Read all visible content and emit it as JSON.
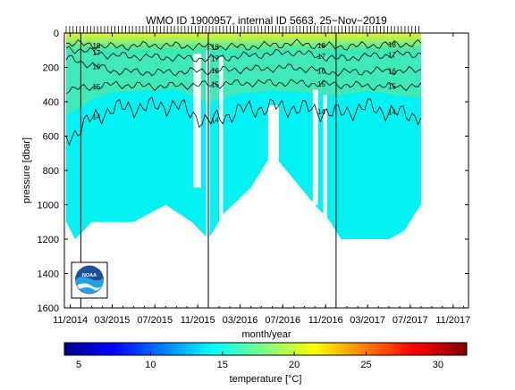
{
  "chart_data": {
    "type": "heatmap",
    "title": "WMO ID 1900957, internal ID 5663, 25−Nov−2019",
    "xlabel": "month/year",
    "ylabel": "pressure [dbar]",
    "x_ticks": [
      "11/2014",
      "03/2015",
      "07/2015",
      "11/2015",
      "03/2016",
      "07/2016",
      "11/2016",
      "03/2017",
      "07/2017",
      "11/2017"
    ],
    "y_ticks": [
      0,
      200,
      400,
      600,
      800,
      1000,
      1200,
      1400,
      1600
    ],
    "ylim": [
      1600,
      0
    ],
    "xlim": [
      "2014-10-15",
      "2017-12-15"
    ],
    "colorbar": {
      "label": "temperature [°C]",
      "range": [
        4,
        32
      ],
      "ticks": [
        5,
        10,
        15,
        20,
        25,
        30
      ],
      "colormap": "jet"
    },
    "contours": [
      {
        "label": "14",
        "level": 14,
        "depth_profile": [
          [
            "2014-11-01",
            600
          ],
          [
            "2015-01-01",
            500
          ],
          [
            "2015-03-01",
            440
          ],
          [
            "2015-06-01",
            430
          ],
          [
            "2015-09-01",
            420
          ],
          [
            "2015-12-01",
            520
          ],
          [
            "2016-03-01",
            450
          ],
          [
            "2016-06-01",
            430
          ],
          [
            "2016-09-01",
            440
          ],
          [
            "2016-12-01",
            470
          ],
          [
            "2017-03-01",
            430
          ],
          [
            "2017-06-01",
            470
          ],
          [
            "2017-08-01",
            480
          ]
        ]
      },
      {
        "label": "15",
        "level": 15,
        "depth_profile": [
          [
            "2014-11-01",
            330
          ],
          [
            "2015-03-01",
            300
          ],
          [
            "2015-07-01",
            310
          ],
          [
            "2015-12-01",
            300
          ],
          [
            "2016-04-01",
            290
          ],
          [
            "2016-08-01",
            290
          ],
          [
            "2016-12-01",
            300
          ],
          [
            "2017-04-01",
            310
          ],
          [
            "2017-08-01",
            310
          ]
        ]
      },
      {
        "label": "16",
        "level": 16,
        "depth_profile": [
          [
            "2014-11-01",
            150
          ],
          [
            "2015-03-01",
            220
          ],
          [
            "2015-07-01",
            230
          ],
          [
            "2015-12-01",
            220
          ],
          [
            "2016-04-01",
            210
          ],
          [
            "2016-08-01",
            200
          ],
          [
            "2016-12-01",
            230
          ],
          [
            "2017-04-01",
            220
          ],
          [
            "2017-08-01",
            220
          ]
        ]
      },
      {
        "label": "17",
        "level": 17,
        "depth_profile": [
          [
            "2014-11-01",
            90
          ],
          [
            "2015-03-01",
            130
          ],
          [
            "2015-07-01",
            140
          ],
          [
            "2015-12-01",
            150
          ],
          [
            "2016-04-01",
            130
          ],
          [
            "2016-08-01",
            110
          ],
          [
            "2016-12-01",
            150
          ],
          [
            "2017-04-01",
            130
          ],
          [
            "2017-08-01",
            120
          ]
        ]
      },
      {
        "label": "18",
        "level": 18,
        "depth_profile": [
          [
            "2014-11-01",
            60
          ],
          [
            "2015-03-01",
            80
          ],
          [
            "2015-07-01",
            70
          ],
          [
            "2015-12-01",
            80
          ],
          [
            "2016-04-01",
            80
          ],
          [
            "2016-08-01",
            60
          ],
          [
            "2016-12-01",
            80
          ],
          [
            "2017-04-01",
            70
          ],
          [
            "2017-08-01",
            60
          ]
        ]
      }
    ],
    "profile_max_depth": [
      [
        "2014-10-20",
        1100
      ],
      [
        "2014-11-15",
        1200
      ],
      [
        "2015-01-01",
        1100
      ],
      [
        "2015-03-01",
        1100
      ],
      [
        "2015-05-01",
        1100
      ],
      [
        "2015-08-01",
        1000
      ],
      [
        "2015-10-15",
        1100
      ],
      [
        "2015-12-01",
        1200
      ],
      [
        "2016-01-15",
        1050
      ],
      [
        "2016-04-01",
        900
      ],
      [
        "2016-06-01",
        700
      ],
      [
        "2016-08-01",
        850
      ],
      [
        "2016-10-01",
        1000
      ],
      [
        "2016-11-15",
        1100
      ],
      [
        "2016-12-15",
        1200
      ],
      [
        "2017-03-01",
        1200
      ],
      [
        "2017-05-01",
        1200
      ],
      [
        "2017-06-15",
        1150
      ],
      [
        "2017-07-15",
        1050
      ],
      [
        "2017-08-01",
        1000
      ]
    ],
    "annual_markers": [
      "2014-12-01",
      "2015-12-01",
      "2016-12-01"
    ],
    "grid": false,
    "logo": "noaa-logo"
  }
}
